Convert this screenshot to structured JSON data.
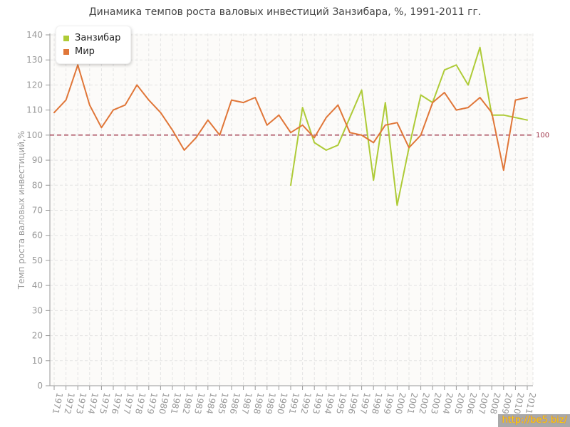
{
  "watermark": {
    "text": "http://be5.biz/"
  },
  "chart_data": {
    "type": "line",
    "title": "Динамика темпов роста валовых инвестиций Занзибара, %, 1991-2011 гг.",
    "ylabel": "Темп роста валовых инвестиций,%",
    "xlabel": "",
    "x": [
      1971,
      1972,
      1973,
      1974,
      1975,
      1976,
      1977,
      1978,
      1979,
      1980,
      1981,
      1982,
      1983,
      1984,
      1985,
      1986,
      1987,
      1988,
      1989,
      1990,
      1991,
      1992,
      1993,
      1994,
      1995,
      1996,
      1997,
      1998,
      1999,
      2000,
      2001,
      2002,
      2003,
      2004,
      2005,
      2006,
      2007,
      2008,
      2009,
      2010,
      2011
    ],
    "ylim": [
      0,
      140
    ],
    "ytick_step": 10,
    "grid": true,
    "legend_position": "top-left",
    "reference_line": {
      "value": 100,
      "label": "100",
      "color": "#a23b4f"
    },
    "series": [
      {
        "name": "Занзибар",
        "color": "#aecb37",
        "values": [
          null,
          null,
          null,
          null,
          null,
          null,
          null,
          null,
          null,
          null,
          null,
          null,
          null,
          null,
          null,
          null,
          null,
          null,
          null,
          null,
          80,
          111,
          97,
          94,
          96,
          107,
          118,
          82,
          113,
          72,
          95,
          116,
          113,
          126,
          128,
          120,
          135,
          108,
          108,
          107,
          106
        ]
      },
      {
        "name": "Мир",
        "color": "#e07638",
        "values": [
          109,
          114,
          128,
          112,
          103,
          110,
          112,
          120,
          114,
          109,
          102,
          94,
          99,
          106,
          100,
          114,
          113,
          115,
          104,
          108,
          101,
          104,
          99,
          107,
          112,
          101,
          100,
          97,
          104,
          105,
          95,
          100,
          113,
          117,
          110,
          111,
          115,
          109,
          86,
          114,
          115
        ]
      }
    ],
    "axis_color": "#999999",
    "grid_color": "#e4e4e4",
    "plot_bg": "#fcfbf9"
  }
}
